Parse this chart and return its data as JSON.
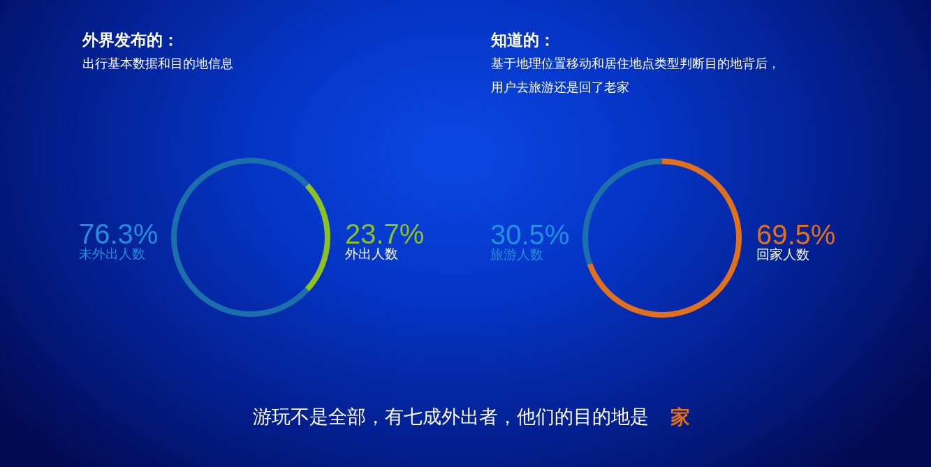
{
  "chart_data": [
    {
      "type": "donut",
      "title": "外界发布的：",
      "subtitle": "出行基本数据和目的地信息",
      "categories": [
        "未外出人数",
        "外出人数"
      ],
      "values": [
        76.3,
        23.7
      ],
      "value_labels": [
        "76.3%",
        "23.7%"
      ],
      "colors": [
        "#1b6fad",
        "#8cc21f"
      ]
    },
    {
      "type": "donut",
      "title": "知道的：",
      "subtitle": "基于地理位置移动和居住地点类型判断目的地背后，用户去旅游还是回了老家",
      "categories": [
        "旅游人数",
        "回家人数"
      ],
      "values": [
        30.5,
        69.5
      ],
      "value_labels": [
        "30.5%",
        "69.5%"
      ],
      "colors": [
        "#1b6fad",
        "#e0701c"
      ],
      "annotations": [
        "游玩不是全部，有七成外出者，他们的目的地是",
        "家"
      ]
    }
  ]
}
